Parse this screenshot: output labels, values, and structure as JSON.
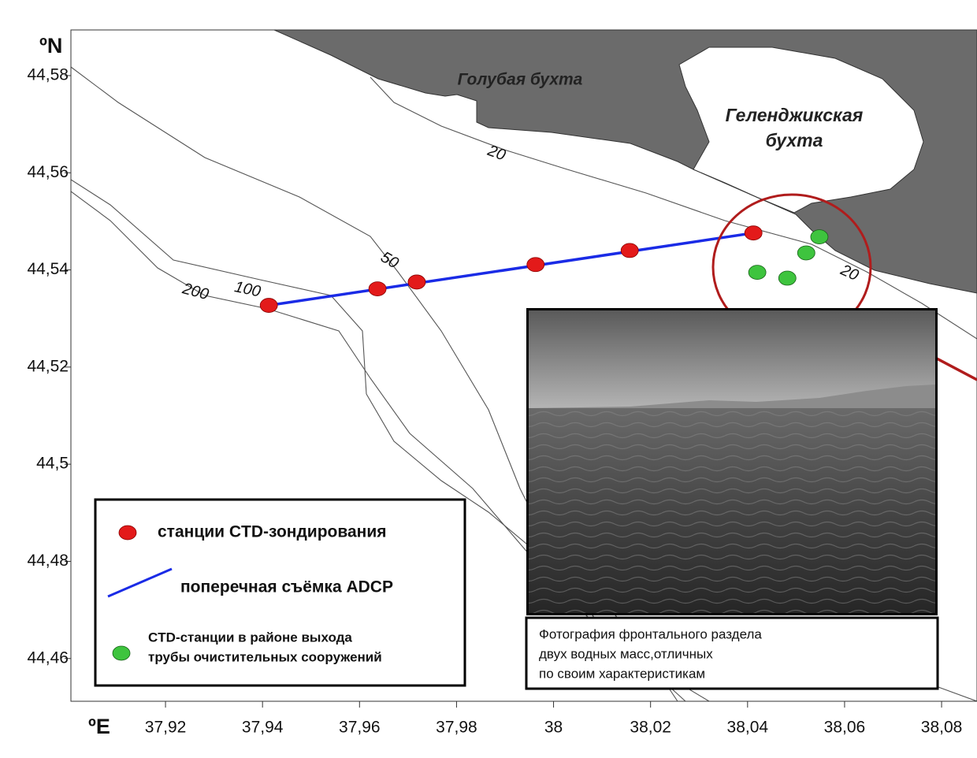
{
  "axes": {
    "y_label": "ºN",
    "x_label": "ºE",
    "xlim": [
      37.9005,
      38.0873
    ],
    "ylim": [
      44.4512,
      44.5894
    ],
    "xticks": [
      {
        "value": 37.92,
        "label": "37,92"
      },
      {
        "value": 37.94,
        "label": "37,94"
      },
      {
        "value": 37.96,
        "label": "37,96"
      },
      {
        "value": 37.98,
        "label": "37,98"
      },
      38,
      {
        "value": 38.02,
        "label": "38,02"
      },
      {
        "value": 38.04,
        "label": "38,04"
      },
      {
        "value": 38.06,
        "label": "38,06"
      },
      {
        "value": 38.08,
        "label": "38,08"
      }
    ],
    "yticks": [
      {
        "value": 44.46,
        "label": "44,46"
      },
      {
        "value": 44.48,
        "label": "44,48"
      },
      {
        "value": 44.5,
        "label": "44,5"
      },
      {
        "value": 44.52,
        "label": "44,52"
      },
      {
        "value": 44.54,
        "label": "44,54"
      },
      {
        "value": 44.56,
        "label": "44,56"
      },
      {
        "value": 44.58,
        "label": "44,58"
      }
    ]
  },
  "places": [
    {
      "lines": [
        "Голубая бухта"
      ]
    },
    {
      "lines": [
        "Геленджикская",
        "бухта"
      ]
    }
  ],
  "isobath_labels": [
    "20",
    "20",
    "50",
    "100",
    "200"
  ],
  "ctd_stations": {
    "lon": [
      37.9413,
      37.9637,
      37.9718,
      37.9963,
      38.0157,
      38.0412
    ],
    "lat": [
      44.5327,
      44.5361,
      44.5375,
      44.5411,
      44.544,
      44.5476
    ]
  },
  "outfall_stations": {
    "lon": [
      38.042,
      38.0482,
      38.0521,
      38.0548
    ],
    "lat": [
      44.5395,
      44.5383,
      44.5435,
      44.5468
    ]
  },
  "legend": [
    {
      "lines": [
        "станции CTD-зондирования"
      ]
    },
    {
      "lines": [
        "поперечная съёмка ADCP"
      ]
    },
    {
      "lines": [
        "CTD-станции в районе выхода",
        "трубы очистительных сооружений"
      ]
    }
  ],
  "photo_caption": [
    "Фотография фронтального раздела",
    "двух водных масс,отличных",
    "по своим характеристикам"
  ]
}
